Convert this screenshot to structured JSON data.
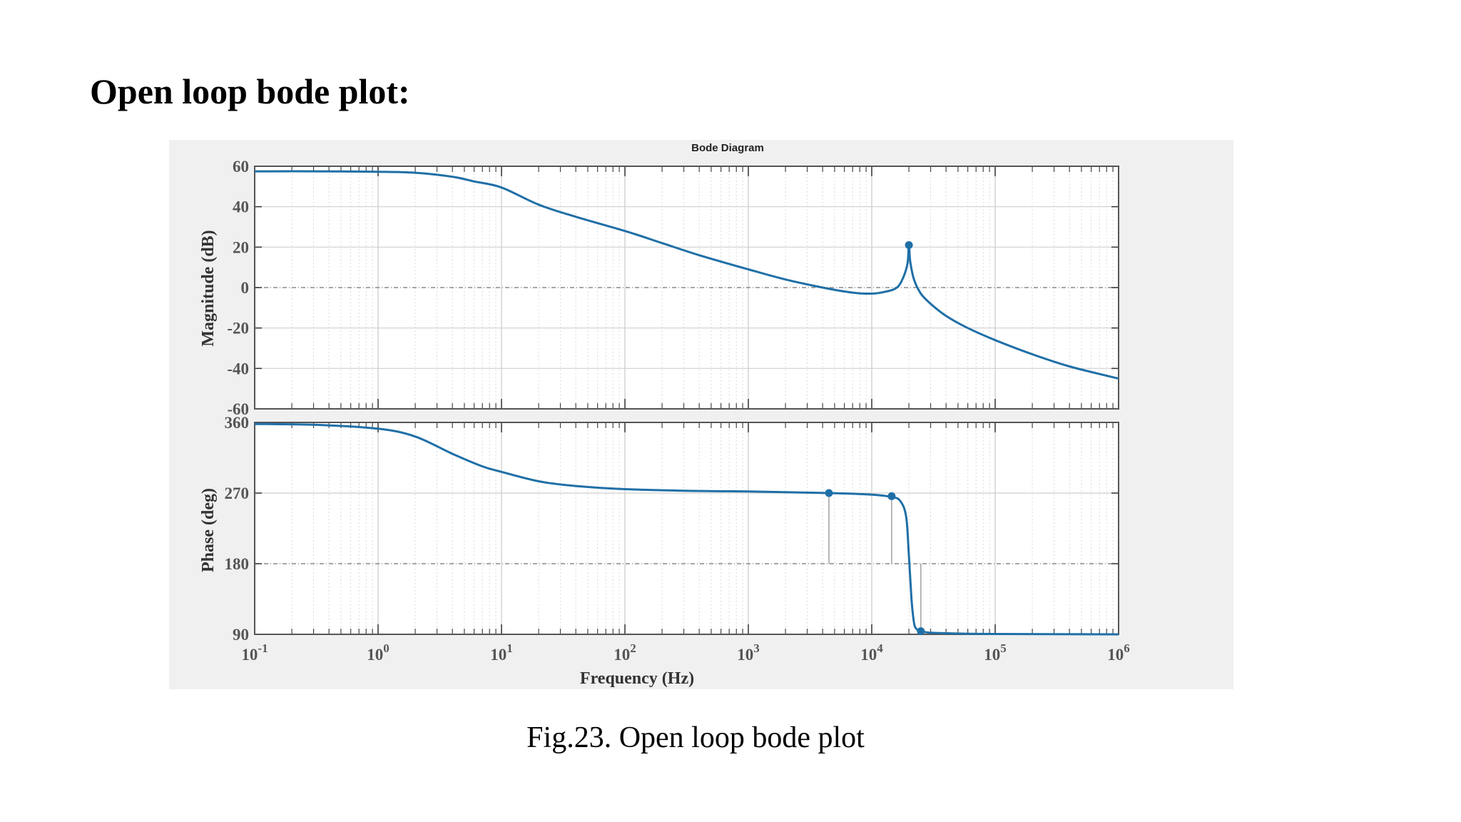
{
  "heading": "Open loop bode plot:",
  "caption": "Fig.23. Open loop bode plot",
  "colors": {
    "trace": "#1f6fa7",
    "panel_bg": "#f0f0f0",
    "axes_bg": "#ffffff"
  },
  "chart_data": [
    {
      "type": "line",
      "title": "Bode Diagram",
      "xlabel": "Frequency (Hz)",
      "ylabel": "Magnitude (dB)",
      "xscale": "log",
      "xlim": [
        0.1,
        1000000
      ],
      "ylim": [
        -60,
        60
      ],
      "yticks": [
        "60",
        "40",
        "20",
        "0",
        "-20",
        "-40",
        "-60"
      ],
      "grid": true,
      "series": [
        {
          "x": [
            0.1,
            0.3,
            1,
            2,
            4,
            6,
            10,
            20,
            40,
            100,
            200,
            400,
            1000,
            2000,
            4000,
            7000,
            10000,
            13000,
            16000,
            18000,
            19500,
            20000,
            20500,
            22000,
            25000,
            30000,
            40000,
            60000,
            100000,
            200000,
            400000,
            1000000
          ],
          "y": [
            57.5,
            57.5,
            57.3,
            56.8,
            54.8,
            52.5,
            49.5,
            41,
            35,
            28,
            22,
            16,
            9,
            4,
            0,
            -2.5,
            -3,
            -2,
            0,
            5,
            12,
            21,
            13,
            4,
            -3,
            -8,
            -14,
            -20,
            -26,
            -33,
            -39,
            -45
          ]
        }
      ],
      "markers": [
        {
          "x": 20000,
          "y": 21
        }
      ]
    },
    {
      "type": "line",
      "xlabel": "Frequency (Hz)",
      "ylabel": "Phase (deg)",
      "xscale": "log",
      "xlim": [
        0.1,
        1000000
      ],
      "xticks": [
        "10^-1",
        "10^0",
        "10^1",
        "10^2",
        "10^3",
        "10^4",
        "10^5",
        "10^6"
      ],
      "ylim": [
        90,
        360
      ],
      "yticks": [
        "360",
        "270",
        "180",
        "90"
      ],
      "grid": true,
      "series": [
        {
          "x": [
            0.1,
            0.3,
            1,
            2,
            4,
            7,
            10,
            20,
            40,
            100,
            300,
            1000,
            4500,
            10000,
            14500,
            17000,
            19000,
            20000,
            21000,
            22000,
            23000,
            25000,
            30000,
            50000,
            100000,
            1000000
          ],
          "y": [
            358,
            357,
            352,
            342,
            320,
            304,
            297,
            285,
            279,
            275,
            273,
            272,
            270,
            268,
            265,
            260,
            240,
            190,
            135,
            105,
            97,
            94,
            92,
            91,
            90.5,
            90
          ]
        }
      ],
      "markers": [
        {
          "x": 4500,
          "y": 270
        },
        {
          "x": 14500,
          "y": 266
        },
        {
          "x": 25000,
          "y": 94
        }
      ],
      "stems": [
        {
          "x": 4500,
          "y_from": 180,
          "y_to": 270
        },
        {
          "x": 14500,
          "y_from": 180,
          "y_to": 266
        },
        {
          "x": 25000,
          "y_from": 94,
          "y_to": 180
        }
      ]
    }
  ]
}
